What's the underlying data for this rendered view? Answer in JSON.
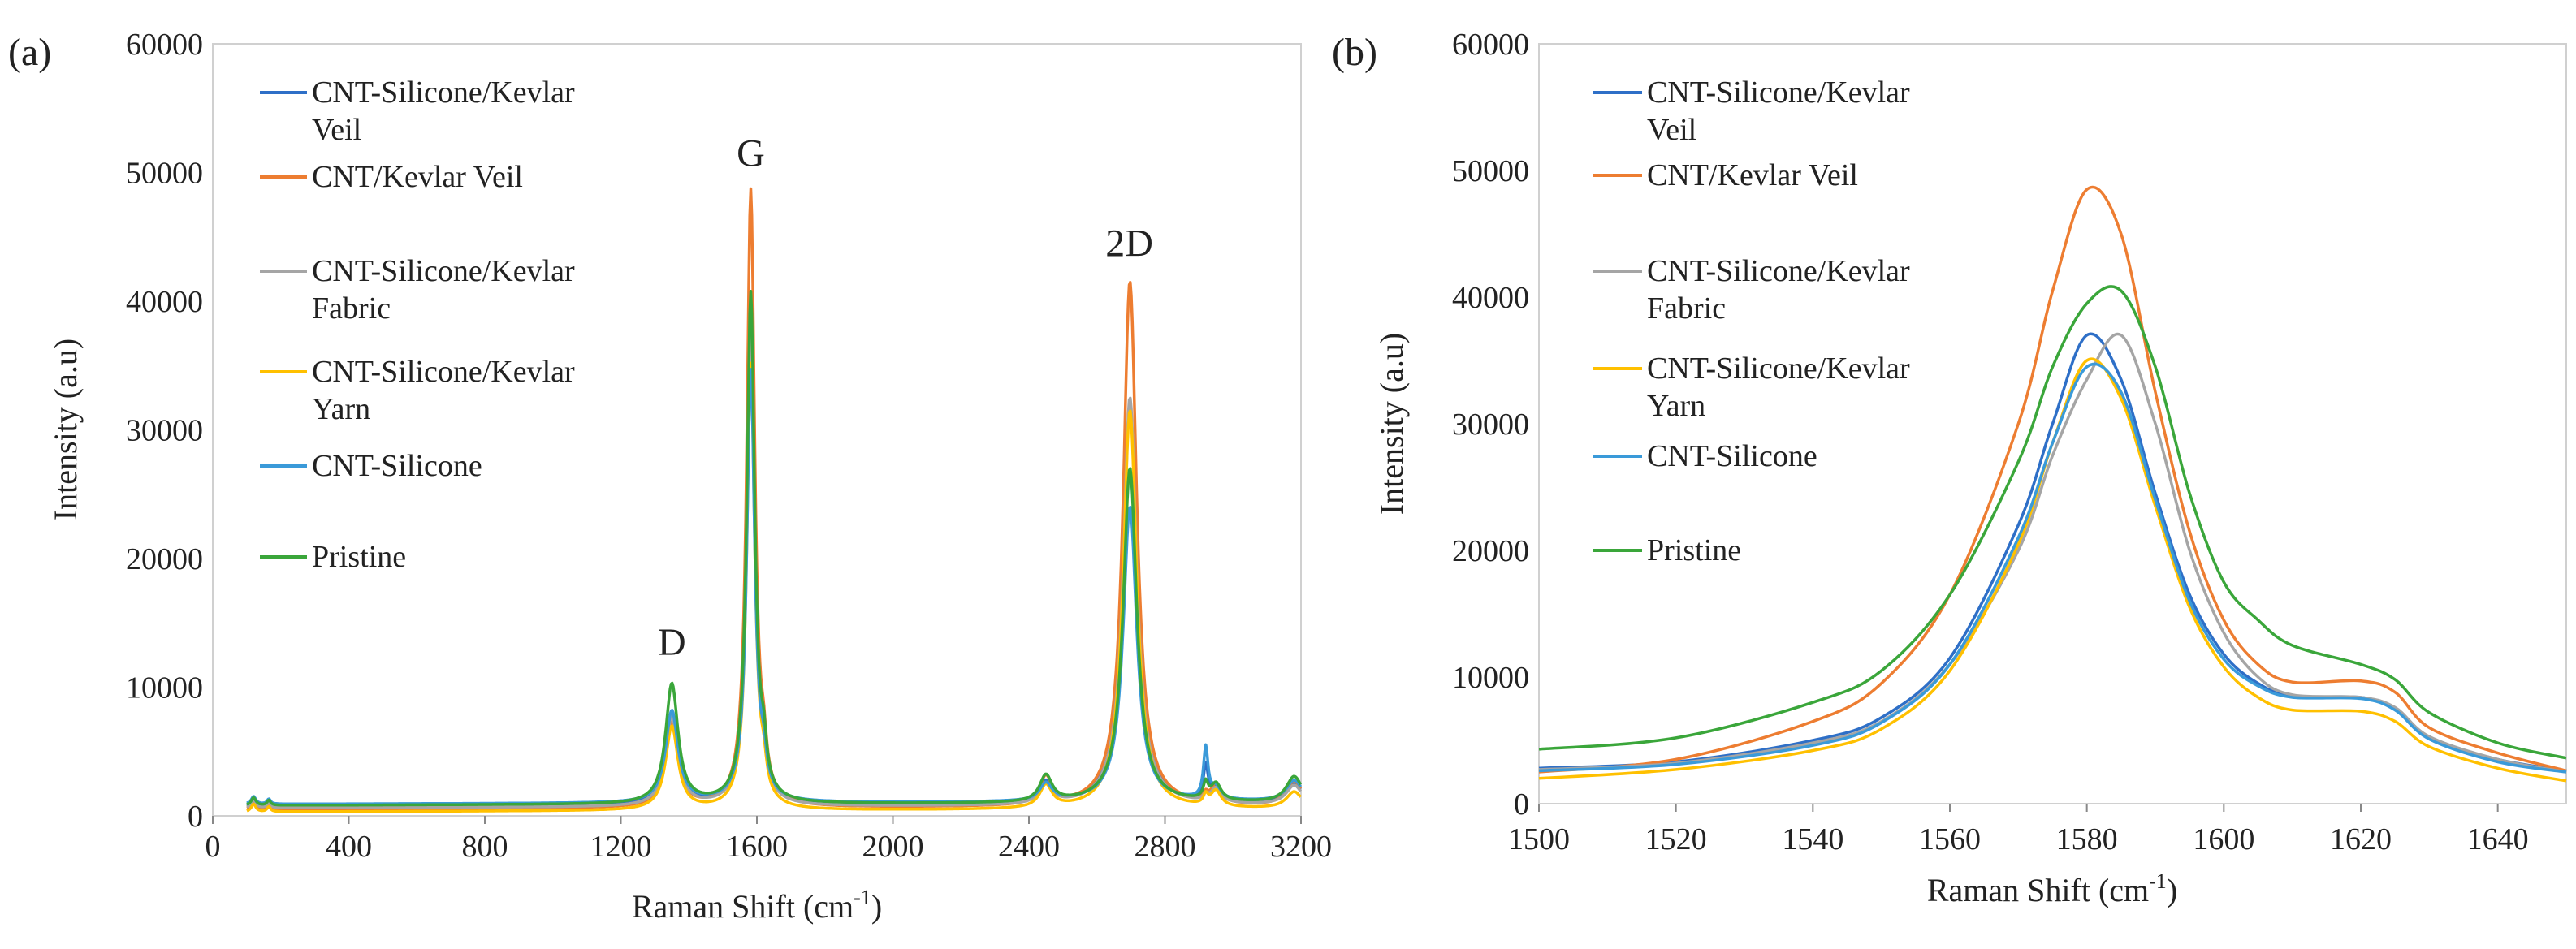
{
  "chart_data": [
    {
      "panel_label": "(a)",
      "type": "line",
      "xlabel": "Raman Shift (cm",
      "xlabel_sup": "-1",
      "xlabel_end": ")",
      "ylabel": "Intensity (a.u)",
      "xlim": [
        0,
        3200
      ],
      "ylim": [
        0,
        60000
      ],
      "xticks": [
        0,
        400,
        800,
        1200,
        1600,
        2000,
        2400,
        2800,
        3200
      ],
      "yticks": [
        0,
        10000,
        20000,
        30000,
        40000,
        50000,
        60000
      ],
      "legend_position": "upper-left",
      "annotations": [
        {
          "text": "D",
          "x": 1350,
          "y": 12500
        },
        {
          "text": "G",
          "x": 1582,
          "y": 50500
        },
        {
          "text": "2D",
          "x": 2695,
          "y": 43500
        }
      ],
      "series": [
        {
          "name": "CNT-Silicone/Kevlar Veil",
          "legend_lines": [
            "CNT-Silicone/Kevlar",
            "Veil"
          ],
          "color": "#2e6fc7",
          "baseline": [
            700,
            900
          ],
          "peaks": {
            "D": 7800,
            "G": 37000,
            "D2": 9500,
            "GD": 2500,
            "TwoD": 32000,
            "third": 1900,
            "extra": 3500,
            "end": 2500
          }
        },
        {
          "name": "CNT/Kevlar Veil",
          "legend_lines": [
            "CNT/Kevlar Veil"
          ],
          "color": "#ed7d31",
          "baseline": [
            500,
            700
          ],
          "peaks": {
            "D": 7000,
            "G": 48500,
            "D2": 9700,
            "GD": 2800,
            "TwoD": 41500,
            "third": 2100,
            "extra": 1200,
            "end": 2600
          }
        },
        {
          "name": "CNT-Silicone/Kevlar Fabric",
          "legend_lines": [
            "CNT-Silicone/Kevlar",
            "Fabric"
          ],
          "color": "#a5a5a5",
          "baseline": [
            600,
            800
          ],
          "peaks": {
            "D": 7500,
            "G": 37000,
            "D2": 8500,
            "GD": 2300,
            "TwoD": 32500,
            "third": 1900,
            "extra": 1200,
            "end": 2300
          }
        },
        {
          "name": "CNT-Silicone/Kevlar Yarn",
          "legend_lines": [
            "CNT-Silicone/Kevlar",
            "Yarn"
          ],
          "color": "#ffc000",
          "baseline": [
            300,
            500
          ],
          "peaks": {
            "D": 6800,
            "G": 35000,
            "D2": 7200,
            "GD": 2200,
            "TwoD": 31500,
            "third": 1700,
            "extra": 1200,
            "end": 1800
          }
        },
        {
          "name": "CNT-Silicone",
          "legend_lines": [
            "CNT-Silicone"
          ],
          "color": "#3a9ad9",
          "baseline": [
            900,
            1100
          ],
          "peaks": {
            "D": 7900,
            "G": 34500,
            "D2": 8200,
            "GD": 2400,
            "TwoD": 24000,
            "third": 2000,
            "extra": 5000,
            "end": 2700
          }
        },
        {
          "name": "Pristine",
          "legend_lines": [
            "Pristine"
          ],
          "color": "#3aa63a",
          "baseline": [
            800,
            1000
          ],
          "peaks": {
            "D": 10000,
            "G": 40500,
            "D2": 10500,
            "GD": 3000,
            "TwoD": 27000,
            "third": 2300,
            "extra": 2200,
            "end": 3000
          }
        }
      ]
    },
    {
      "panel_label": "(b)",
      "type": "line",
      "xlabel": "Raman Shift (cm",
      "xlabel_sup": "-1",
      "xlabel_end": ")",
      "ylabel": "Intensity (a.u)",
      "xlim": [
        1500,
        1650
      ],
      "ylim": [
        0,
        60000
      ],
      "xticks": [
        1500,
        1520,
        1540,
        1560,
        1580,
        1600,
        1620,
        1640
      ],
      "yticks": [
        0,
        10000,
        20000,
        30000,
        40000,
        50000,
        60000
      ],
      "legend_position": "upper-left",
      "series": [
        {
          "name": "CNT-Silicone/Kevlar Veil",
          "legend_lines": [
            "CNT-Silicone/Kevlar",
            "Veil"
          ],
          "color": "#2e6fc7",
          "points": [
            [
              1500,
              2800
            ],
            [
              1520,
              3300
            ],
            [
              1540,
              5000
            ],
            [
              1550,
              6800
            ],
            [
              1560,
              11500
            ],
            [
              1570,
              22000
            ],
            [
              1575,
              30000
            ],
            [
              1580,
              37000
            ],
            [
              1585,
              33500
            ],
            [
              1590,
              24500
            ],
            [
              1595,
              16500
            ],
            [
              1600,
              11800
            ],
            [
              1605,
              9500
            ],
            [
              1610,
              8500
            ],
            [
              1620,
              8400
            ],
            [
              1625,
              7500
            ],
            [
              1630,
              5200
            ],
            [
              1640,
              3500
            ],
            [
              1650,
              2600
            ]
          ]
        },
        {
          "name": "CNT/Kevlar Veil",
          "legend_lines": [
            "CNT/Kevlar Veil"
          ],
          "color": "#ed7d31",
          "points": [
            [
              1500,
              2500
            ],
            [
              1520,
              3500
            ],
            [
              1540,
              6500
            ],
            [
              1550,
              9500
            ],
            [
              1560,
              16500
            ],
            [
              1570,
              30000
            ],
            [
              1575,
              40500
            ],
            [
              1580,
              48500
            ],
            [
              1585,
              45000
            ],
            [
              1590,
              32500
            ],
            [
              1595,
              21500
            ],
            [
              1600,
              14500
            ],
            [
              1605,
              11000
            ],
            [
              1610,
              9600
            ],
            [
              1620,
              9700
            ],
            [
              1625,
              8800
            ],
            [
              1630,
              6000
            ],
            [
              1640,
              4000
            ],
            [
              1650,
              2600
            ]
          ]
        },
        {
          "name": "CNT-Silicone/Kevlar Fabric",
          "legend_lines": [
            "CNT-Silicone/Kevlar",
            "Fabric"
          ],
          "color": "#a5a5a5",
          "points": [
            [
              1500,
              2700
            ],
            [
              1520,
              3200
            ],
            [
              1540,
              4800
            ],
            [
              1550,
              6500
            ],
            [
              1560,
              11000
            ],
            [
              1570,
              20000
            ],
            [
              1575,
              27500
            ],
            [
              1580,
              33500
            ],
            [
              1585,
              37000
            ],
            [
              1590,
              30000
            ],
            [
              1595,
              20000
            ],
            [
              1600,
              13500
            ],
            [
              1605,
              10000
            ],
            [
              1610,
              8600
            ],
            [
              1620,
              8400
            ],
            [
              1625,
              7600
            ],
            [
              1630,
              5300
            ],
            [
              1640,
              3500
            ],
            [
              1650,
              2500
            ]
          ]
        },
        {
          "name": "CNT-Silicone/Kevlar Yarn",
          "legend_lines": [
            "CNT-Silicone/Kevlar",
            "Yarn"
          ],
          "color": "#ffc000",
          "points": [
            [
              1500,
              2000
            ],
            [
              1520,
              2700
            ],
            [
              1540,
              4200
            ],
            [
              1550,
              5900
            ],
            [
              1560,
              10500
            ],
            [
              1570,
              20500
            ],
            [
              1575,
              28500
            ],
            [
              1580,
              35000
            ],
            [
              1585,
              32000
            ],
            [
              1590,
              23500
            ],
            [
              1595,
              15500
            ],
            [
              1600,
              10800
            ],
            [
              1605,
              8400
            ],
            [
              1610,
              7400
            ],
            [
              1620,
              7300
            ],
            [
              1625,
              6500
            ],
            [
              1630,
              4500
            ],
            [
              1640,
              2800
            ],
            [
              1650,
              1800
            ]
          ]
        },
        {
          "name": "CNT-Silicone",
          "legend_lines": [
            "CNT-Silicone"
          ],
          "color": "#3a9ad9",
          "points": [
            [
              1500,
              2600
            ],
            [
              1520,
              3100
            ],
            [
              1540,
              4600
            ],
            [
              1550,
              6400
            ],
            [
              1560,
              11000
            ],
            [
              1570,
              21000
            ],
            [
              1575,
              28500
            ],
            [
              1580,
              34500
            ],
            [
              1585,
              32500
            ],
            [
              1590,
              24000
            ],
            [
              1595,
              16000
            ],
            [
              1600,
              11400
            ],
            [
              1605,
              9300
            ],
            [
              1610,
              8400
            ],
            [
              1620,
              8300
            ],
            [
              1625,
              7400
            ],
            [
              1630,
              5100
            ],
            [
              1640,
              3300
            ],
            [
              1650,
              2500
            ]
          ]
        },
        {
          "name": "Pristine",
          "legend_lines": [
            "Pristine"
          ],
          "color": "#3aa63a",
          "points": [
            [
              1500,
              4300
            ],
            [
              1520,
              5200
            ],
            [
              1540,
              8000
            ],
            [
              1550,
              10500
            ],
            [
              1560,
              16500
            ],
            [
              1570,
              27000
            ],
            [
              1575,
              34500
            ],
            [
              1580,
              39500
            ],
            [
              1585,
              40500
            ],
            [
              1590,
              34500
            ],
            [
              1595,
              24500
            ],
            [
              1600,
              17500
            ],
            [
              1605,
              14500
            ],
            [
              1610,
              12500
            ],
            [
              1620,
              11000
            ],
            [
              1625,
              9800
            ],
            [
              1630,
              7200
            ],
            [
              1640,
              4800
            ],
            [
              1650,
              3600
            ]
          ]
        }
      ]
    }
  ]
}
